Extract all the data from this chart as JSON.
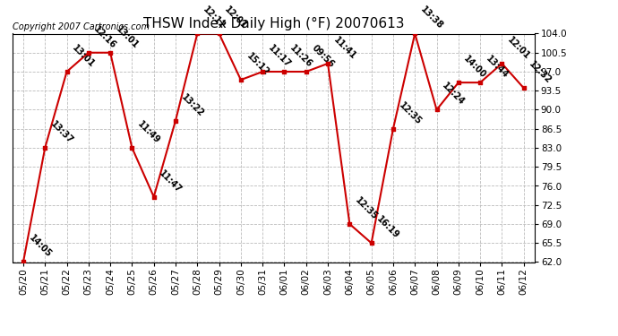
{
  "title": "THSW Index Daily High (°F) 20070613",
  "copyright": "Copyright 2007 Cartronics.com",
  "dates": [
    "05/20",
    "05/21",
    "05/22",
    "05/23",
    "05/24",
    "05/25",
    "05/26",
    "05/27",
    "05/28",
    "05/29",
    "05/30",
    "05/31",
    "06/01",
    "06/02",
    "06/03",
    "06/04",
    "06/05",
    "06/06",
    "06/07",
    "06/08",
    "06/09",
    "06/10",
    "06/11",
    "06/12"
  ],
  "values": [
    62.0,
    83.0,
    97.0,
    100.5,
    100.5,
    83.0,
    74.0,
    88.0,
    104.0,
    104.0,
    95.5,
    97.0,
    97.0,
    97.0,
    98.5,
    69.0,
    65.5,
    86.5,
    104.0,
    90.0,
    95.0,
    95.0,
    98.5,
    94.0
  ],
  "labels": [
    "14:05",
    "13:37",
    "13:01",
    "12:16",
    "13:01",
    "11:49",
    "11:47",
    "13:22",
    "12:12",
    "12:01",
    "15:12",
    "11:17",
    "11:26",
    "09:56",
    "11:41",
    "12:35",
    "16:19",
    "12:35",
    "13:38",
    "12:24",
    "14:00",
    "13:44",
    "12:01",
    "12:32"
  ],
  "ylim": [
    62.0,
    104.0
  ],
  "yticks": [
    62.0,
    65.5,
    69.0,
    72.5,
    76.0,
    79.5,
    83.0,
    86.5,
    90.0,
    93.5,
    97.0,
    100.5,
    104.0
  ],
  "line_color": "#cc0000",
  "marker_color": "#cc0000",
  "bg_color": "#ffffff",
  "grid_color": "#bbbbbb",
  "title_fontsize": 11,
  "label_fontsize": 7,
  "tick_fontsize": 7.5,
  "copyright_fontsize": 7
}
